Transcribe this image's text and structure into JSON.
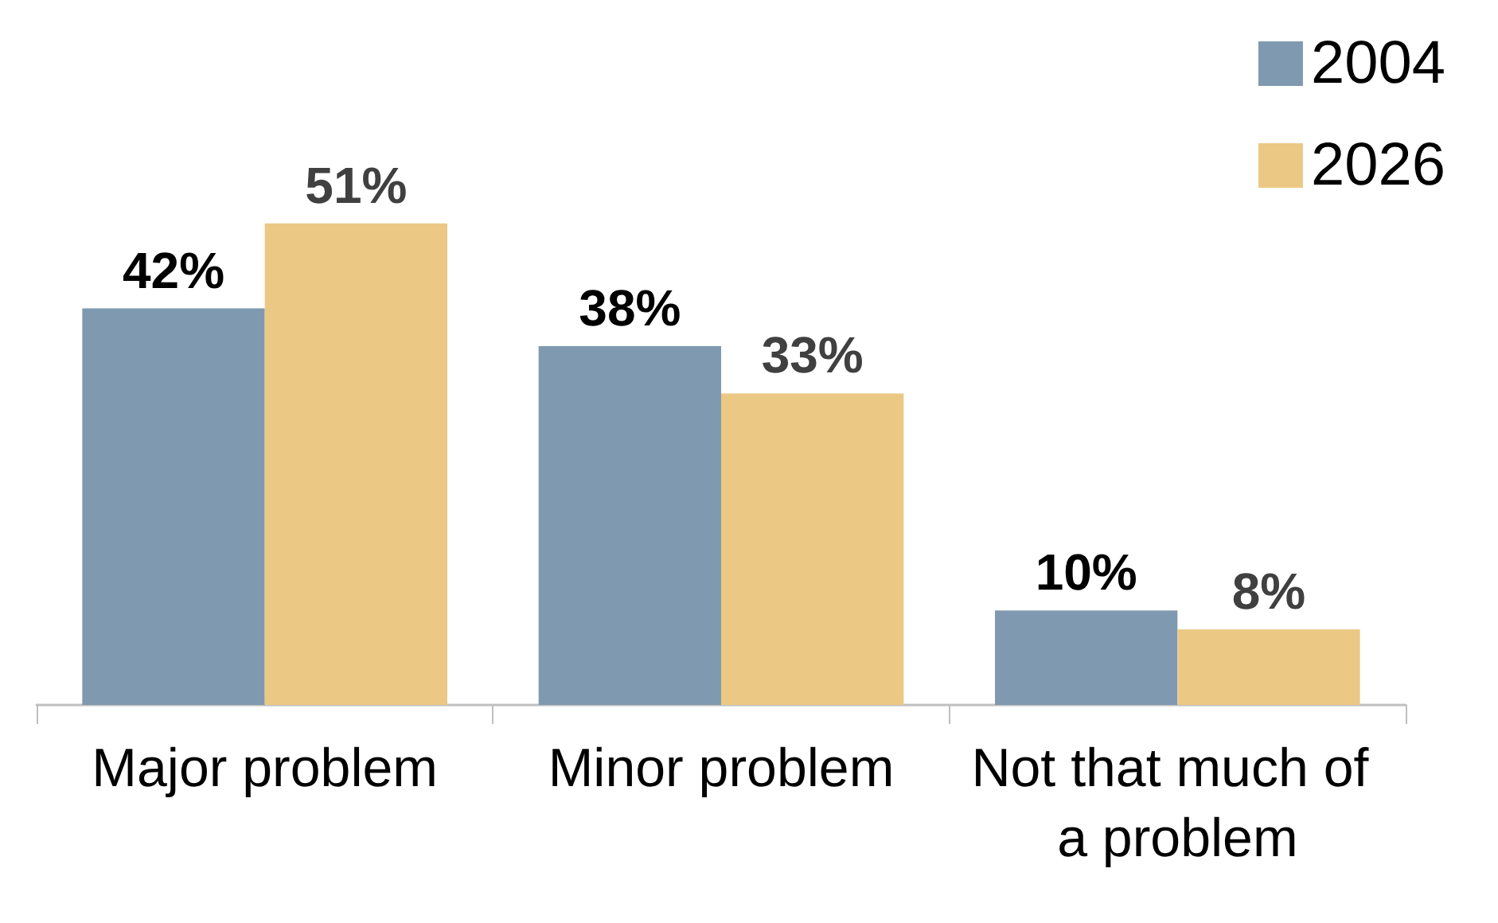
{
  "chart_data": {
    "type": "bar",
    "categories": [
      "Major problem",
      "Minor problem",
      "Not that much of a problem"
    ],
    "series": [
      {
        "name": "2004",
        "color": "#7f9ab0",
        "values": [
          42,
          38,
          10
        ],
        "value_labels": [
          "42%",
          "38%",
          "10%"
        ]
      },
      {
        "name": "2026",
        "color": "#ebc985",
        "values": [
          51,
          33,
          8
        ],
        "value_labels": [
          "51%",
          "33%",
          "8%"
        ]
      }
    ],
    "legend": "top right",
    "grid": false
  }
}
